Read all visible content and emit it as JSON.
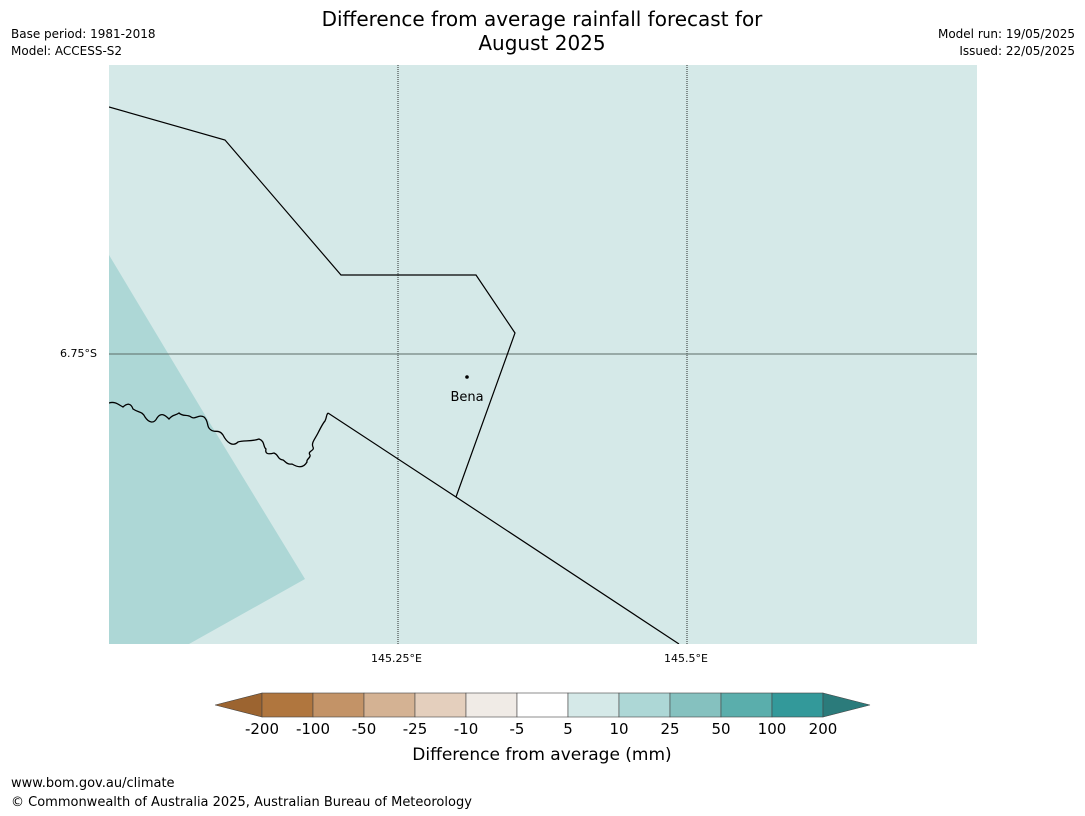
{
  "header": {
    "title_line1": "Difference from average rainfall forecast for",
    "title_line2": "August 2025",
    "base_period": "Base period: 1981-2018",
    "model": "Model: ACCESS-S2",
    "model_run": "Model run: 19/05/2025",
    "issued": "Issued: 22/05/2025"
  },
  "map": {
    "background_color": "#d5e9e8",
    "region_color": "#add7d6",
    "lat_label": "6.75°S",
    "lon_labels": [
      "145.25°E",
      "145.5°E"
    ],
    "place": {
      "name": "Bena"
    }
  },
  "legend": {
    "title": "Difference from average (mm)",
    "tick_labels": [
      "-200",
      "-100",
      "-50",
      "-25",
      "-10",
      "-5",
      "5",
      "10",
      "25",
      "50",
      "100",
      "200"
    ],
    "colors": [
      "#9c6430",
      "#b0763e",
      "#c39367",
      "#d4b293",
      "#e4cfbd",
      "#f0ebe6",
      "#ffffff",
      "#d5e9e8",
      "#add7d6",
      "#85c1bf",
      "#5aaeac",
      "#33999a",
      "#2b7b7b"
    ]
  },
  "footer": {
    "url": "www.bom.gov.au/climate",
    "copyright": "© Commonwealth of Australia 2025, Australian Bureau of Meteorology"
  }
}
